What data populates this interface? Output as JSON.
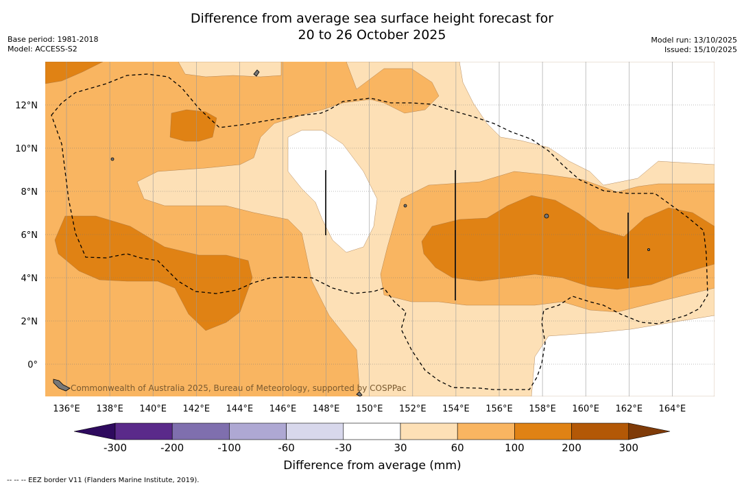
{
  "header": {
    "title_line1": "Difference from average sea surface height forecast for",
    "title_line2": "20 to 26 October 2025",
    "base_period": "Base period: 1981-2018",
    "model": "Model: ACCESS-S2",
    "model_run": "Model run: 13/10/2025",
    "issued": "Issued: 15/10/2025"
  },
  "map": {
    "lon_ticks": [
      "136°E",
      "138°E",
      "140°E",
      "142°E",
      "144°E",
      "146°E",
      "148°E",
      "150°E",
      "152°E",
      "154°E",
      "156°E",
      "158°E",
      "160°E",
      "162°E",
      "164°E"
    ],
    "lat_ticks": [
      "12°N",
      "10°N",
      "8°N",
      "6°N",
      "4°N",
      "2°N",
      "0°"
    ],
    "attribution": "Commonwealth of Australia 2025, Bureau of Meteorology, supported by COSPPac"
  },
  "colorbar": {
    "labels": [
      "-300",
      "-200",
      "-100",
      "-60",
      "-30",
      "30",
      "60",
      "100",
      "200",
      "300"
    ],
    "title": "Difference from average (mm)",
    "colors": [
      "#2e0a5e",
      "#5a2a8a",
      "#7f6fae",
      "#aea8d3",
      "#d8d8ec",
      "#ffffff",
      "#fde0b6",
      "#f9b561",
      "#e08214",
      "#b35806",
      "#7f3b08"
    ]
  },
  "legend": {
    "eez_text": "--  --  -- EEZ border V11 (Flanders Marine Institute, 2019)."
  }
}
